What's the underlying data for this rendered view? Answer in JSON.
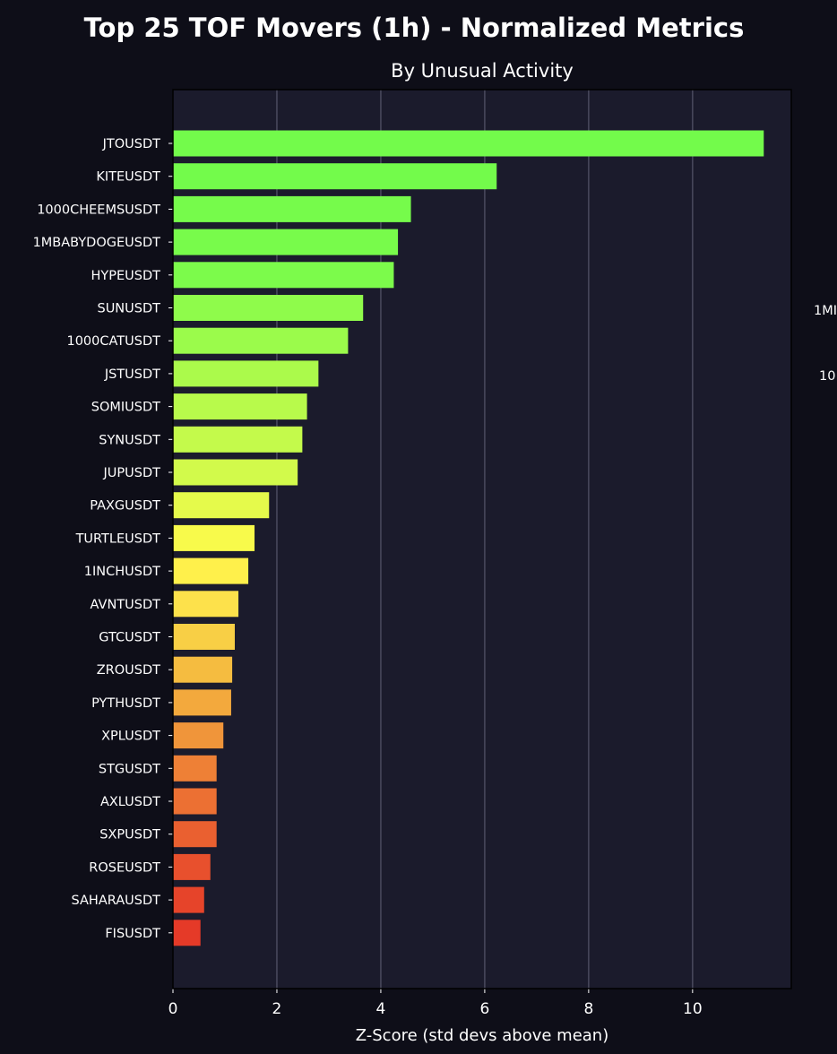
{
  "figure": {
    "suptitle": "Top 25 TOF Movers (1h) - Normalized Metrics",
    "background_color": "#0e0e18",
    "plot_background_color": "#1b1b2c",
    "grid_color": "#4a4a5e",
    "clipped_annotations": [
      "1MI",
      "10"
    ]
  },
  "chart_data": {
    "type": "bar",
    "orientation": "horizontal",
    "title": "By Unusual Activity",
    "xlabel": "Z-Score (std devs above mean)",
    "ylabel": "",
    "xlim": [
      0,
      11.9
    ],
    "xticks": [
      0,
      2,
      4,
      6,
      8,
      10
    ],
    "grid": "x-axis vertical lines",
    "legend": "none",
    "colormap": "red-yellow-green (low to high)",
    "categories": [
      "JTOUSDT",
      "KITEUSDT",
      "1000CHEEMSUSDT",
      "1MBABYDOGEUSDT",
      "HYPEUSDT",
      "SUNUSDT",
      "1000CATUSDT",
      "JSTUSDT",
      "SOMIUSDT",
      "SYNUSDT",
      "JUPUSDT",
      "PAXGUSDT",
      "TURTLEUSDT",
      "1INCHUSDT",
      "AVNTUSDT",
      "GTCUSDT",
      "ZROUSDT",
      "PYTHUSDT",
      "XPLUSDT",
      "STGUSDT",
      "AXLUSDT",
      "SXPUSDT",
      "ROSEUSDT",
      "SAHARAUSDT",
      "FISUSDT"
    ],
    "values": [
      11.37,
      6.23,
      4.58,
      4.33,
      4.25,
      3.66,
      3.37,
      2.8,
      2.58,
      2.49,
      2.4,
      1.85,
      1.57,
      1.45,
      1.26,
      1.19,
      1.14,
      1.12,
      0.97,
      0.84,
      0.84,
      0.84,
      0.72,
      0.6,
      0.53
    ],
    "colors": [
      "#73fb4b",
      "#73fb4b",
      "#76fb4b",
      "#78fb4b",
      "#7cfb4b",
      "#8ffb4b",
      "#9bfb4b",
      "#abfa4b",
      "#b8fa4b",
      "#c4fa4b",
      "#d2fa4b",
      "#e5fa4b",
      "#f8fa4b",
      "#fff04b",
      "#fde14b",
      "#f8cf45",
      "#f5bc40",
      "#f3a93d",
      "#f0953a",
      "#ee8036",
      "#ec7033",
      "#ea6030",
      "#e8502d",
      "#e6442a",
      "#e53a28"
    ]
  }
}
